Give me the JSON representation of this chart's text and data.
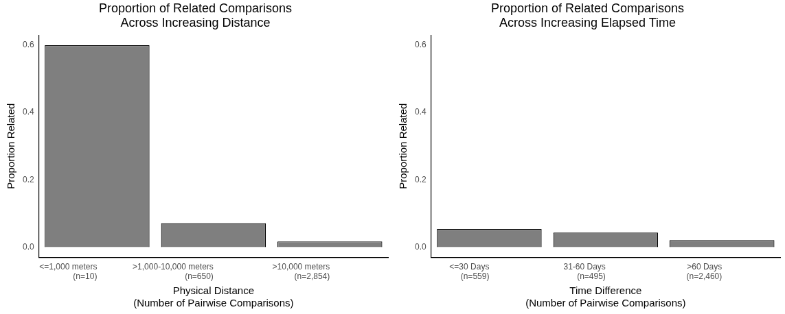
{
  "chart_data": [
    {
      "type": "bar",
      "title": "Proportion of Related Comparisons\nAcross Increasing Distance",
      "xlabel": "Physical Distance\n(Number of Pairwise Comparisons)",
      "ylabel": "Proportion Related",
      "categories": [
        "<=1,000 meters\n(n=10)",
        ">1,000-10,000 meters\n(n=650)",
        ">10,000 meters\n(n=2,854)"
      ],
      "values": [
        0.6,
        0.071,
        0.017
      ],
      "color": "#7f7f7f",
      "ylim": [
        -0.03,
        0.63
      ],
      "yticks": [
        {
          "value": 0,
          "label": "0.0"
        },
        0.2,
        0.4,
        0.6
      ],
      "grid": false
    },
    {
      "type": "bar",
      "title": "Proportion of Related Comparisons\nAcross Increasing Elapsed Time",
      "xlabel": "Time Difference\n(Number of Pairwise Comparisons)",
      "ylabel": "Proportion Related",
      "categories": [
        "<=30 Days\n(n=559)",
        "31-60 Days\n(n=495)",
        ">60 Days\n(n=2,460)"
      ],
      "values": [
        0.054,
        0.043,
        0.021
      ],
      "color": "#7f7f7f",
      "ylim": [
        -0.03,
        0.63
      ],
      "yticks": [
        {
          "value": 0,
          "label": "0.0"
        },
        0.2,
        0.4,
        0.6
      ],
      "grid": false
    }
  ]
}
